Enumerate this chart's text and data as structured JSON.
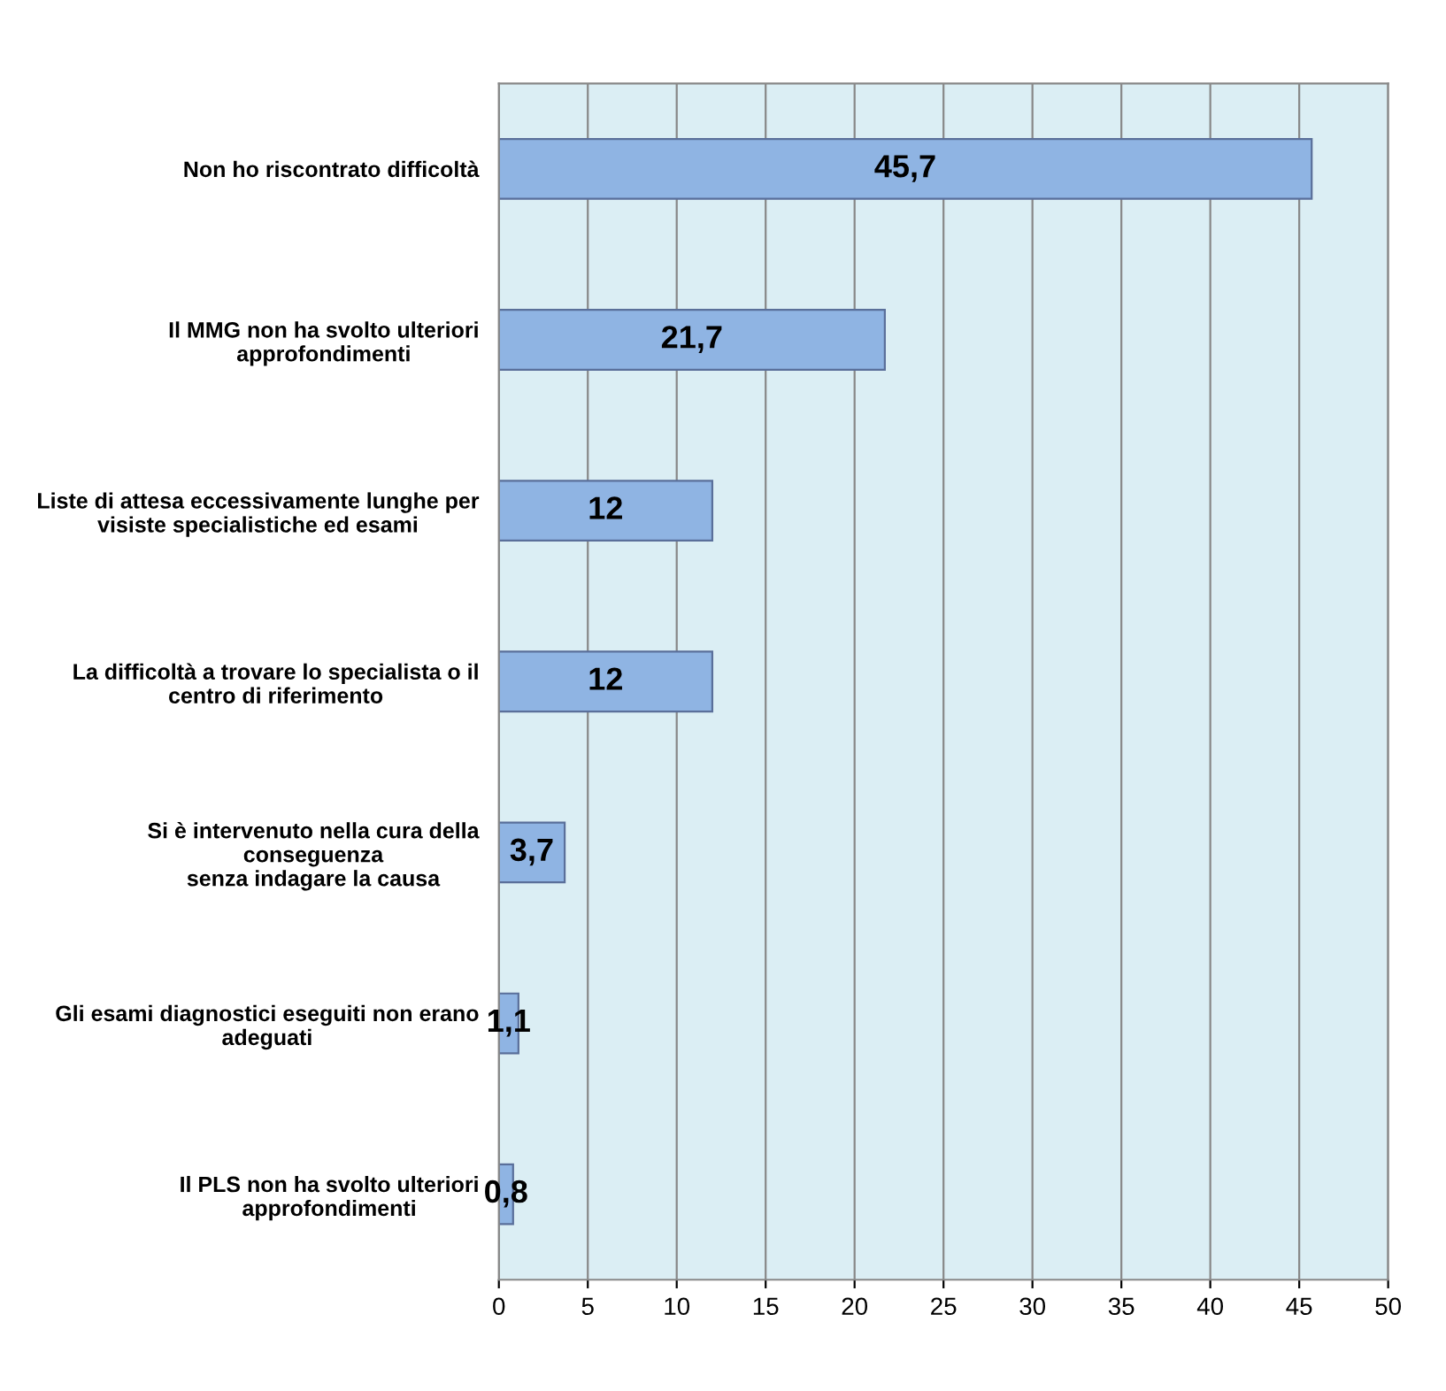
{
  "chart_data": {
    "type": "bar",
    "orientation": "horizontal",
    "categories": [
      "Non ho riscontrato difficoltà",
      "Il MMG non ha svolto ulteriori\napprofondimenti",
      "Liste di attesa eccessivamente lunghe per\nvisiste specialistiche ed esami",
      "La difficoltà a trovare lo specialista o il\ncentro di riferimento",
      "Si è intervenuto nella cura della\nconseguenza\nsenza indagare la causa",
      "Gli esami diagnostici eseguiti non erano\nadeguati",
      "Il PLS non ha svolto ulteriori\napprofondimenti"
    ],
    "values": [
      45.7,
      21.7,
      12,
      12,
      3.7,
      1.1,
      0.8
    ],
    "value_labels": [
      "45,7",
      "21,7",
      "12",
      "12",
      "3,7",
      "1,1",
      "0,8"
    ],
    "color": "#8fb4e3",
    "xlim": [
      0,
      50
    ],
    "xticks": [
      0,
      5,
      10,
      15,
      20,
      25,
      30,
      35,
      40,
      45,
      50
    ],
    "grid": "x"
  }
}
